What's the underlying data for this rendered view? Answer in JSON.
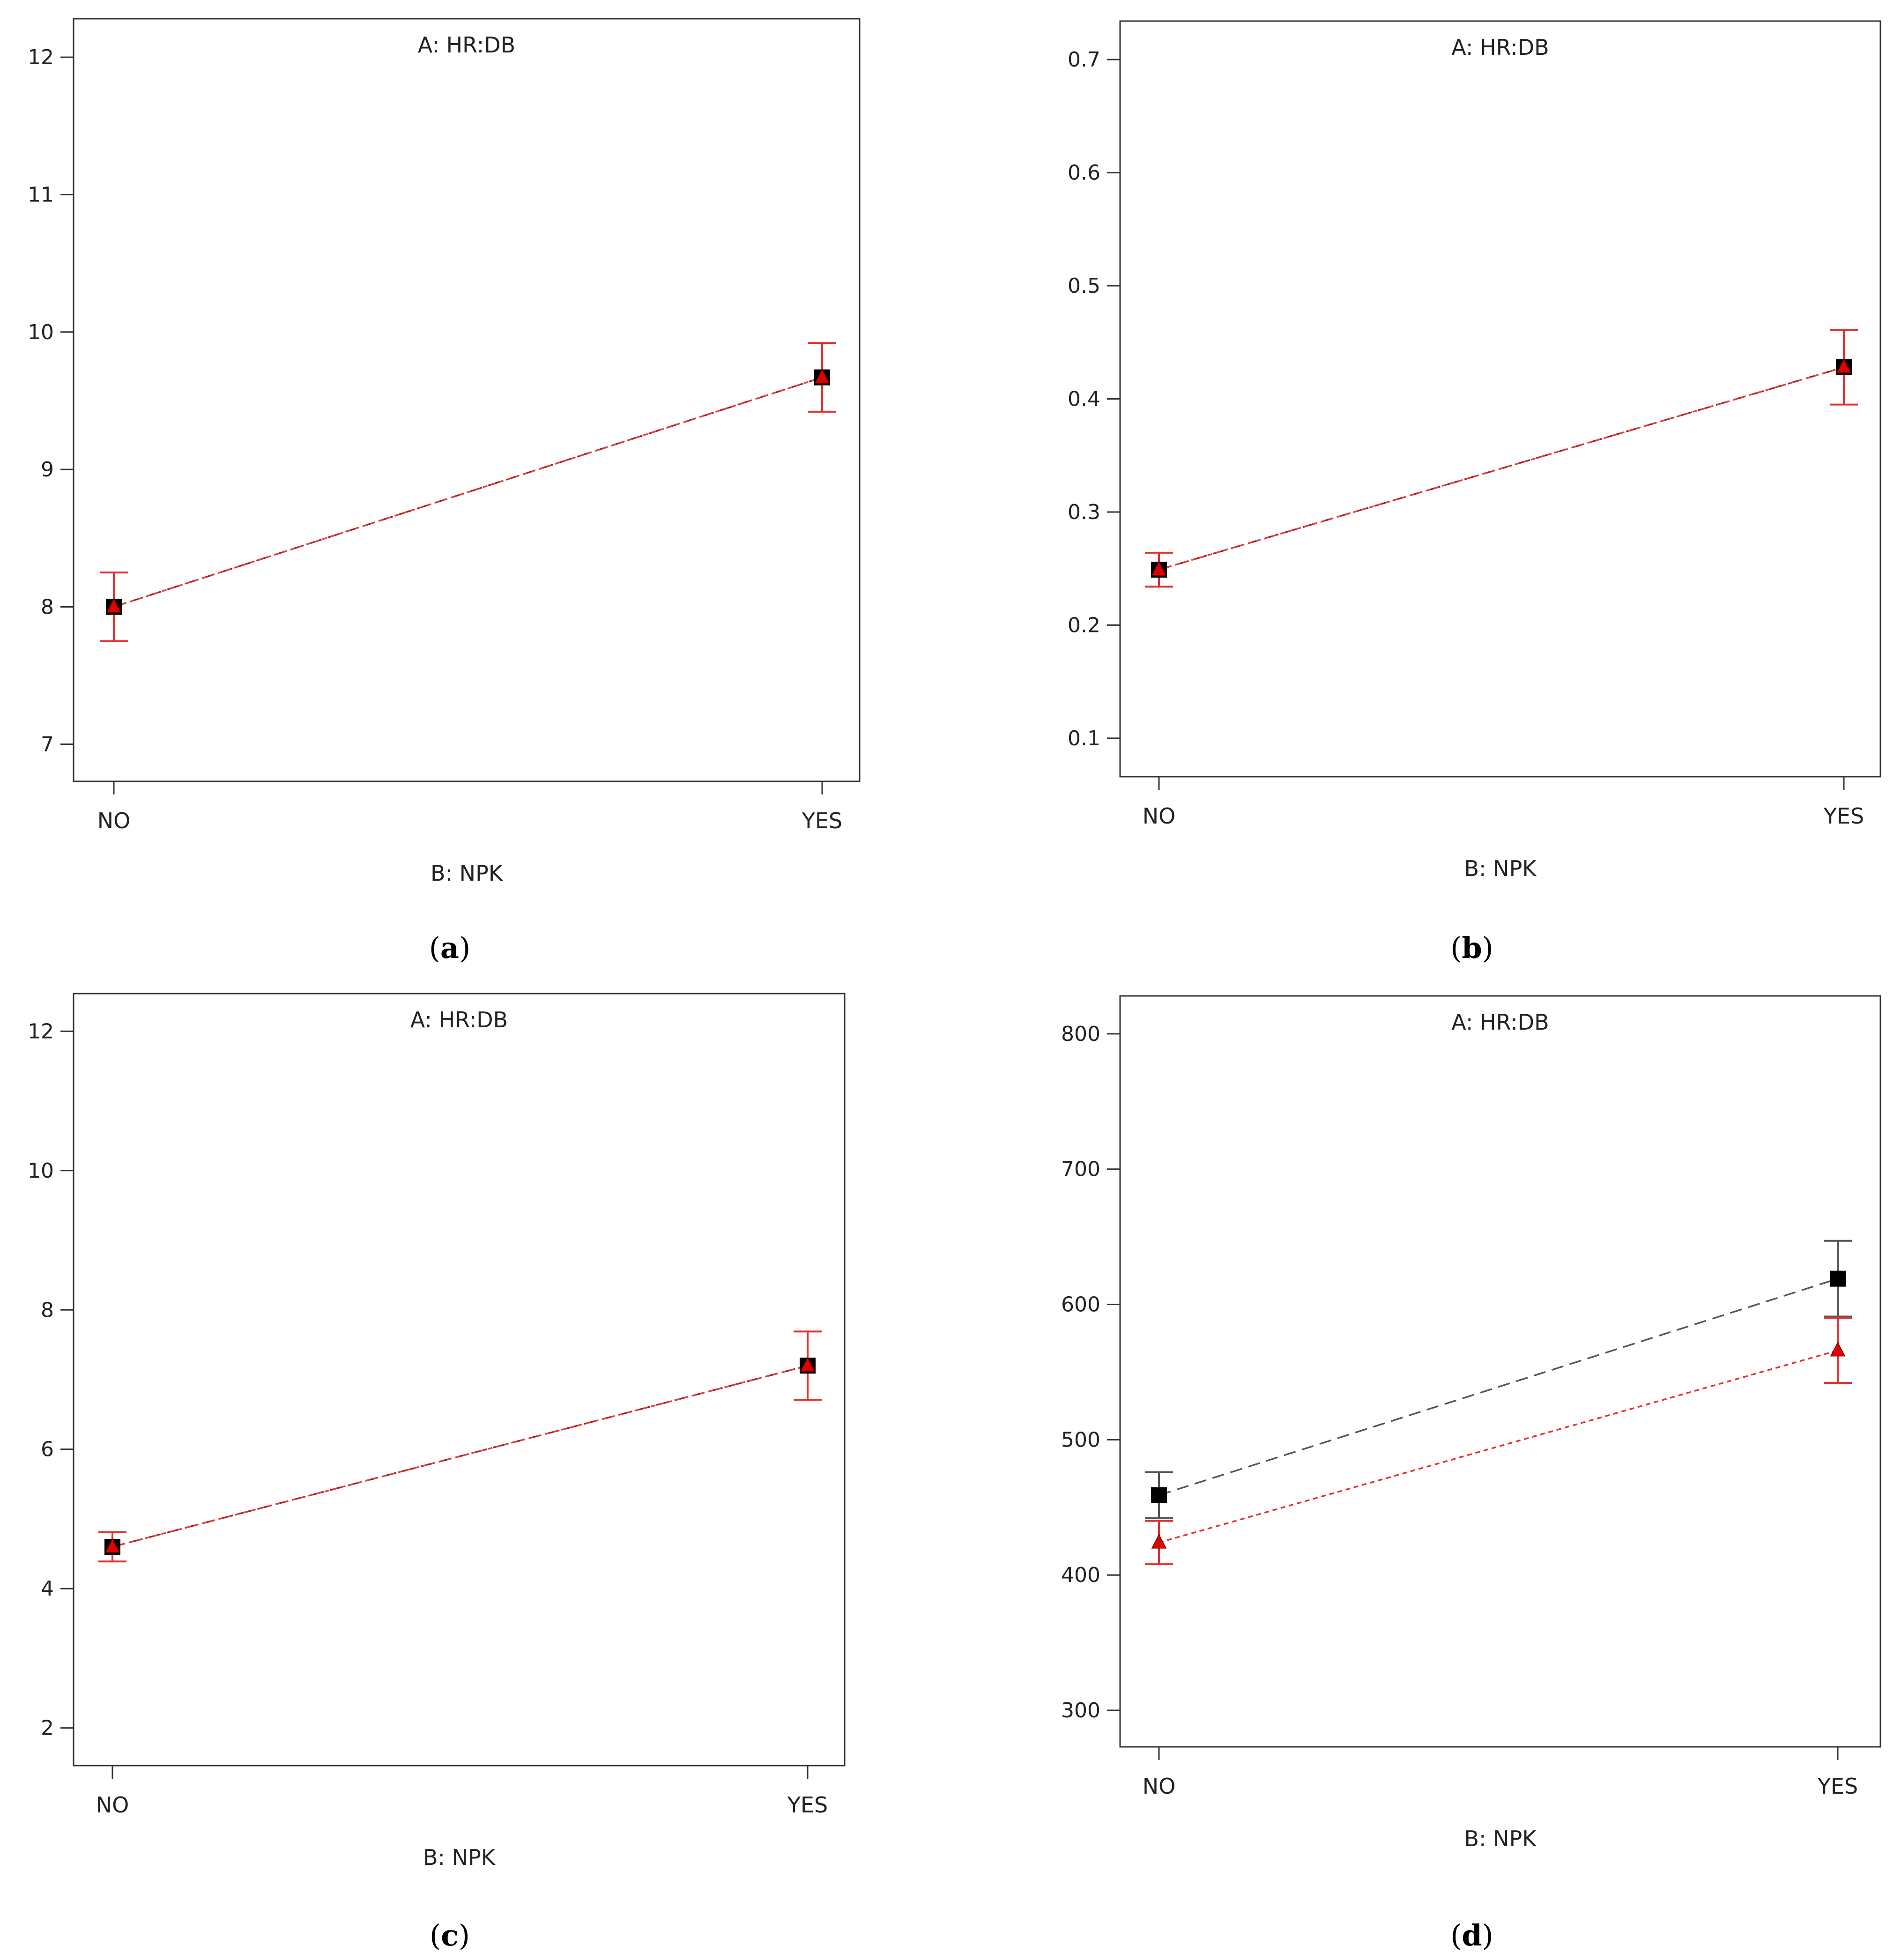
{
  "figure": {
    "panels": [
      {
        "id": "a",
        "caption": "(a)",
        "caption_letter": "a",
        "chart": {
          "type": "line",
          "title": "A: HR:DB",
          "xlabel": "B: NPK",
          "ylabel": "",
          "categories": [
            "NO",
            "YES"
          ],
          "ylim": [
            6.73,
            12.28
          ],
          "yticks": [
            7,
            8,
            9,
            10,
            11,
            12
          ],
          "grid": false,
          "series": [
            {
              "marker": "square",
              "color": "#000000",
              "line_color": "#555555",
              "values": [
                8.0,
                9.67
              ],
              "error": [
                0.25,
                0.25
              ]
            },
            {
              "marker": "triangle",
              "color": "#e00000",
              "line_color": "#e53030",
              "values": [
                8.0,
                9.67
              ],
              "error": [
                0.25,
                0.25
              ]
            }
          ]
        }
      },
      {
        "id": "b",
        "caption": "(b)",
        "caption_letter": "b",
        "chart": {
          "type": "line",
          "title": "A: HR:DB",
          "xlabel": "B: NPK",
          "ylabel": "",
          "categories": [
            "NO",
            "YES"
          ],
          "ylim": [
            0.066,
            0.734
          ],
          "yticks": [
            0.1,
            0.2,
            0.3,
            0.4,
            0.5,
            0.6,
            0.7
          ],
          "grid": false,
          "series": [
            {
              "marker": "square",
              "color": "#000000",
              "line_color": "#555555",
              "values": [
                0.249,
                0.428
              ],
              "error": [
                0.015,
                0.033
              ]
            },
            {
              "marker": "triangle",
              "color": "#e00000",
              "line_color": "#e53030",
              "values": [
                0.249,
                0.428
              ],
              "error": [
                0.015,
                0.033
              ]
            }
          ]
        }
      },
      {
        "id": "c",
        "caption": "(c)",
        "caption_letter": "c",
        "chart": {
          "type": "line",
          "title": "A: HR:DB",
          "xlabel": "B: NPK",
          "ylabel": "",
          "categories": [
            "NO",
            "YES"
          ],
          "ylim": [
            1.46,
            12.54
          ],
          "yticks": [
            2,
            4,
            6,
            8,
            10,
            12
          ],
          "grid": false,
          "series": [
            {
              "marker": "square",
              "color": "#000000",
              "line_color": "#555555",
              "values": [
                4.6,
                7.2
              ],
              "error": [
                0.21,
                0.49
              ]
            },
            {
              "marker": "triangle",
              "color": "#e00000",
              "line_color": "#e53030",
              "values": [
                4.6,
                7.2
              ],
              "error": [
                0.21,
                0.49
              ]
            }
          ]
        }
      },
      {
        "id": "d",
        "caption": "(d)",
        "caption_letter": "d",
        "chart": {
          "type": "line",
          "title": "A: HR:DB",
          "xlabel": "B: NPK",
          "ylabel": "",
          "categories": [
            "NO",
            "YES"
          ],
          "ylim": [
            273,
            828
          ],
          "yticks": [
            300,
            400,
            500,
            600,
            700,
            800
          ],
          "grid": false,
          "series": [
            {
              "marker": "square",
              "color": "#000000",
              "line_color": "#555555",
              "values": [
                459,
                619
              ],
              "error": [
                17,
                28
              ]
            },
            {
              "marker": "triangle",
              "color": "#e00000",
              "line_color": "#e53030",
              "values": [
                424,
                566
              ],
              "error": [
                16,
                24
              ]
            }
          ]
        }
      }
    ]
  },
  "chart_data": [
    {
      "type": "line",
      "title": "A: HR:DB",
      "xlabel": "B: NPK",
      "categories": [
        "NO",
        "YES"
      ],
      "ylim": [
        6.73,
        12.28
      ],
      "series": [
        {
          "marker": "square",
          "values": [
            8.0,
            9.67
          ],
          "error": [
            0.25,
            0.25
          ]
        },
        {
          "marker": "triangle",
          "values": [
            8.0,
            9.67
          ],
          "error": [
            0.25,
            0.25
          ]
        }
      ]
    },
    {
      "type": "line",
      "title": "A: HR:DB",
      "xlabel": "B: NPK",
      "categories": [
        "NO",
        "YES"
      ],
      "ylim": [
        0.066,
        0.734
      ],
      "series": [
        {
          "marker": "square",
          "values": [
            0.249,
            0.428
          ],
          "error": [
            0.015,
            0.033
          ]
        },
        {
          "marker": "triangle",
          "values": [
            0.249,
            0.428
          ],
          "error": [
            0.015,
            0.033
          ]
        }
      ]
    },
    {
      "type": "line",
      "title": "A: HR:DB",
      "xlabel": "B: NPK",
      "categories": [
        "NO",
        "YES"
      ],
      "ylim": [
        1.46,
        12.54
      ],
      "series": [
        {
          "marker": "square",
          "values": [
            4.6,
            7.2
          ],
          "error": [
            0.21,
            0.49
          ]
        },
        {
          "marker": "triangle",
          "values": [
            4.6,
            7.2
          ],
          "error": [
            0.21,
            0.49
          ]
        }
      ]
    },
    {
      "type": "line",
      "title": "A: HR:DB",
      "xlabel": "B: NPK",
      "categories": [
        "NO",
        "YES"
      ],
      "ylim": [
        273,
        828
      ],
      "series": [
        {
          "marker": "square",
          "values": [
            459,
            619
          ],
          "error": [
            17,
            28
          ]
        },
        {
          "marker": "triangle",
          "values": [
            424,
            566
          ],
          "error": [
            16,
            24
          ]
        }
      ]
    }
  ]
}
